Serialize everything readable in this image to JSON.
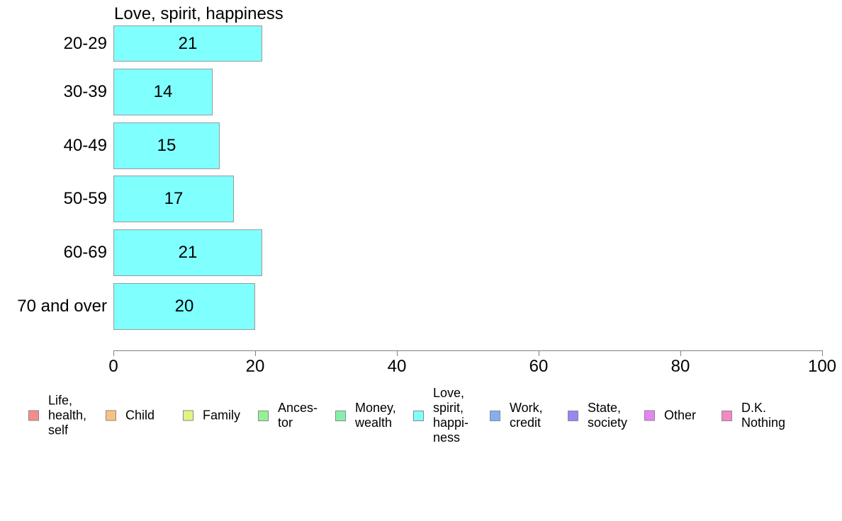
{
  "chart_data": {
    "type": "bar",
    "orientation": "horizontal",
    "title": "Love, spirit, happiness",
    "categories": [
      "20-29",
      "30-39",
      "40-49",
      "50-59",
      "60-69",
      "70 and over"
    ],
    "values": [
      21,
      14,
      15,
      17,
      21,
      20
    ],
    "xlim": [
      0,
      100
    ],
    "x_ticks": [
      0,
      20,
      40,
      60,
      80,
      100
    ],
    "grid": "off",
    "bar_color": "#80ffff",
    "legend_position": "bottom"
  },
  "legend": {
    "items": [
      {
        "label": "Life,\nhealth,\nself",
        "color": "#f58c8c"
      },
      {
        "label": "Child",
        "color": "#f7c280"
      },
      {
        "label": "Family",
        "color": "#e3f382"
      },
      {
        "label": "Ances-\ntor",
        "color": "#94f194"
      },
      {
        "label": "Money,\nwealth",
        "color": "#87efac"
      },
      {
        "label": "Love,\nspirit,\nhappi-\nness",
        "color": "#80ffff"
      },
      {
        "label": "Work,\ncredit",
        "color": "#85aef3"
      },
      {
        "label": "State,\nsociety",
        "color": "#9489f1"
      },
      {
        "label": "Other",
        "color": "#e584f4"
      },
      {
        "label": "D.K.\nNothing",
        "color": "#f687c2"
      }
    ]
  }
}
